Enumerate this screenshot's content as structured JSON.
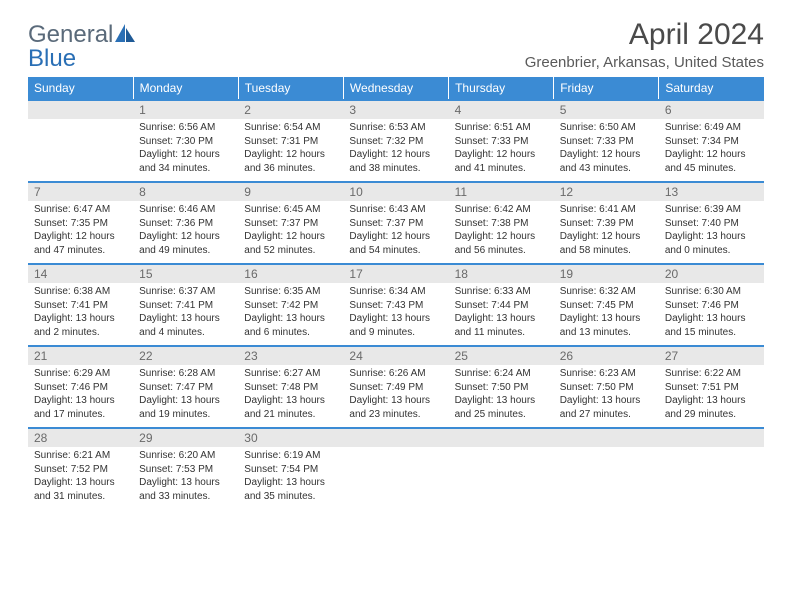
{
  "brand": {
    "part1": "General",
    "part2": "Blue"
  },
  "title": "April 2024",
  "location": "Greenbrier, Arkansas, United States",
  "colors": {
    "header_bg": "#3b8bd4",
    "header_text": "#ffffff",
    "daynum_bg": "#e8e8e8",
    "daynum_text": "#6a6a6a",
    "body_text": "#333333",
    "border": "#3b8bd4",
    "logo_gray": "#5a6a7a",
    "logo_blue": "#2a6fb5"
  },
  "daysOfWeek": [
    "Sunday",
    "Monday",
    "Tuesday",
    "Wednesday",
    "Thursday",
    "Friday",
    "Saturday"
  ],
  "weeks": [
    [
      {
        "num": "",
        "sunrise": "",
        "sunset": "",
        "daylight1": "",
        "daylight2": ""
      },
      {
        "num": "1",
        "sunrise": "Sunrise: 6:56 AM",
        "sunset": "Sunset: 7:30 PM",
        "daylight1": "Daylight: 12 hours",
        "daylight2": "and 34 minutes."
      },
      {
        "num": "2",
        "sunrise": "Sunrise: 6:54 AM",
        "sunset": "Sunset: 7:31 PM",
        "daylight1": "Daylight: 12 hours",
        "daylight2": "and 36 minutes."
      },
      {
        "num": "3",
        "sunrise": "Sunrise: 6:53 AM",
        "sunset": "Sunset: 7:32 PM",
        "daylight1": "Daylight: 12 hours",
        "daylight2": "and 38 minutes."
      },
      {
        "num": "4",
        "sunrise": "Sunrise: 6:51 AM",
        "sunset": "Sunset: 7:33 PM",
        "daylight1": "Daylight: 12 hours",
        "daylight2": "and 41 minutes."
      },
      {
        "num": "5",
        "sunrise": "Sunrise: 6:50 AM",
        "sunset": "Sunset: 7:33 PM",
        "daylight1": "Daylight: 12 hours",
        "daylight2": "and 43 minutes."
      },
      {
        "num": "6",
        "sunrise": "Sunrise: 6:49 AM",
        "sunset": "Sunset: 7:34 PM",
        "daylight1": "Daylight: 12 hours",
        "daylight2": "and 45 minutes."
      }
    ],
    [
      {
        "num": "7",
        "sunrise": "Sunrise: 6:47 AM",
        "sunset": "Sunset: 7:35 PM",
        "daylight1": "Daylight: 12 hours",
        "daylight2": "and 47 minutes."
      },
      {
        "num": "8",
        "sunrise": "Sunrise: 6:46 AM",
        "sunset": "Sunset: 7:36 PM",
        "daylight1": "Daylight: 12 hours",
        "daylight2": "and 49 minutes."
      },
      {
        "num": "9",
        "sunrise": "Sunrise: 6:45 AM",
        "sunset": "Sunset: 7:37 PM",
        "daylight1": "Daylight: 12 hours",
        "daylight2": "and 52 minutes."
      },
      {
        "num": "10",
        "sunrise": "Sunrise: 6:43 AM",
        "sunset": "Sunset: 7:37 PM",
        "daylight1": "Daylight: 12 hours",
        "daylight2": "and 54 minutes."
      },
      {
        "num": "11",
        "sunrise": "Sunrise: 6:42 AM",
        "sunset": "Sunset: 7:38 PM",
        "daylight1": "Daylight: 12 hours",
        "daylight2": "and 56 minutes."
      },
      {
        "num": "12",
        "sunrise": "Sunrise: 6:41 AM",
        "sunset": "Sunset: 7:39 PM",
        "daylight1": "Daylight: 12 hours",
        "daylight2": "and 58 minutes."
      },
      {
        "num": "13",
        "sunrise": "Sunrise: 6:39 AM",
        "sunset": "Sunset: 7:40 PM",
        "daylight1": "Daylight: 13 hours",
        "daylight2": "and 0 minutes."
      }
    ],
    [
      {
        "num": "14",
        "sunrise": "Sunrise: 6:38 AM",
        "sunset": "Sunset: 7:41 PM",
        "daylight1": "Daylight: 13 hours",
        "daylight2": "and 2 minutes."
      },
      {
        "num": "15",
        "sunrise": "Sunrise: 6:37 AM",
        "sunset": "Sunset: 7:41 PM",
        "daylight1": "Daylight: 13 hours",
        "daylight2": "and 4 minutes."
      },
      {
        "num": "16",
        "sunrise": "Sunrise: 6:35 AM",
        "sunset": "Sunset: 7:42 PM",
        "daylight1": "Daylight: 13 hours",
        "daylight2": "and 6 minutes."
      },
      {
        "num": "17",
        "sunrise": "Sunrise: 6:34 AM",
        "sunset": "Sunset: 7:43 PM",
        "daylight1": "Daylight: 13 hours",
        "daylight2": "and 9 minutes."
      },
      {
        "num": "18",
        "sunrise": "Sunrise: 6:33 AM",
        "sunset": "Sunset: 7:44 PM",
        "daylight1": "Daylight: 13 hours",
        "daylight2": "and 11 minutes."
      },
      {
        "num": "19",
        "sunrise": "Sunrise: 6:32 AM",
        "sunset": "Sunset: 7:45 PM",
        "daylight1": "Daylight: 13 hours",
        "daylight2": "and 13 minutes."
      },
      {
        "num": "20",
        "sunrise": "Sunrise: 6:30 AM",
        "sunset": "Sunset: 7:46 PM",
        "daylight1": "Daylight: 13 hours",
        "daylight2": "and 15 minutes."
      }
    ],
    [
      {
        "num": "21",
        "sunrise": "Sunrise: 6:29 AM",
        "sunset": "Sunset: 7:46 PM",
        "daylight1": "Daylight: 13 hours",
        "daylight2": "and 17 minutes."
      },
      {
        "num": "22",
        "sunrise": "Sunrise: 6:28 AM",
        "sunset": "Sunset: 7:47 PM",
        "daylight1": "Daylight: 13 hours",
        "daylight2": "and 19 minutes."
      },
      {
        "num": "23",
        "sunrise": "Sunrise: 6:27 AM",
        "sunset": "Sunset: 7:48 PM",
        "daylight1": "Daylight: 13 hours",
        "daylight2": "and 21 minutes."
      },
      {
        "num": "24",
        "sunrise": "Sunrise: 6:26 AM",
        "sunset": "Sunset: 7:49 PM",
        "daylight1": "Daylight: 13 hours",
        "daylight2": "and 23 minutes."
      },
      {
        "num": "25",
        "sunrise": "Sunrise: 6:24 AM",
        "sunset": "Sunset: 7:50 PM",
        "daylight1": "Daylight: 13 hours",
        "daylight2": "and 25 minutes."
      },
      {
        "num": "26",
        "sunrise": "Sunrise: 6:23 AM",
        "sunset": "Sunset: 7:50 PM",
        "daylight1": "Daylight: 13 hours",
        "daylight2": "and 27 minutes."
      },
      {
        "num": "27",
        "sunrise": "Sunrise: 6:22 AM",
        "sunset": "Sunset: 7:51 PM",
        "daylight1": "Daylight: 13 hours",
        "daylight2": "and 29 minutes."
      }
    ],
    [
      {
        "num": "28",
        "sunrise": "Sunrise: 6:21 AM",
        "sunset": "Sunset: 7:52 PM",
        "daylight1": "Daylight: 13 hours",
        "daylight2": "and 31 minutes."
      },
      {
        "num": "29",
        "sunrise": "Sunrise: 6:20 AM",
        "sunset": "Sunset: 7:53 PM",
        "daylight1": "Daylight: 13 hours",
        "daylight2": "and 33 minutes."
      },
      {
        "num": "30",
        "sunrise": "Sunrise: 6:19 AM",
        "sunset": "Sunset: 7:54 PM",
        "daylight1": "Daylight: 13 hours",
        "daylight2": "and 35 minutes."
      },
      {
        "num": "",
        "sunrise": "",
        "sunset": "",
        "daylight1": "",
        "daylight2": ""
      },
      {
        "num": "",
        "sunrise": "",
        "sunset": "",
        "daylight1": "",
        "daylight2": ""
      },
      {
        "num": "",
        "sunrise": "",
        "sunset": "",
        "daylight1": "",
        "daylight2": ""
      },
      {
        "num": "",
        "sunrise": "",
        "sunset": "",
        "daylight1": "",
        "daylight2": ""
      }
    ]
  ]
}
